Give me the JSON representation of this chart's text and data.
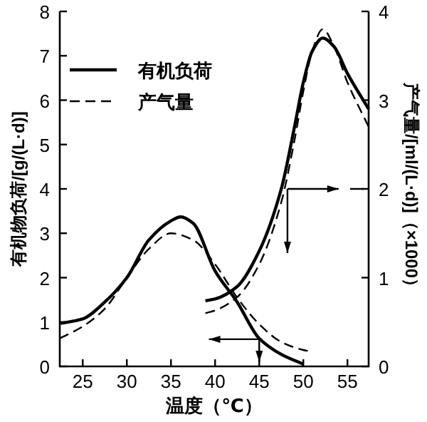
{
  "chart_data": {
    "type": "line",
    "xlabel": "温度（℃）",
    "ylabel": "有机物负荷/[g/(L·d)]",
    "y2label": "产气量/[ml/(L·d)]（×1000）",
    "xlim": [
      22.4,
      57.4
    ],
    "xticks": [
      25,
      30,
      35,
      40,
      45,
      50,
      55
    ],
    "ylim": [
      0,
      8
    ],
    "yticks": [
      0,
      1,
      2,
      3,
      4,
      5,
      6,
      7,
      8
    ],
    "y2lim": [
      0,
      4
    ],
    "y2ticks": [
      0,
      1,
      2,
      3,
      4
    ],
    "legend": "top left",
    "grid": false,
    "series": [
      {
        "name": "有机负荷",
        "color": "#000000",
        "line_style": "solid",
        "x": [
          22.5,
          25,
          27.5,
          30,
          32.5,
          35,
          36.1,
          37.5,
          40,
          42.5,
          45,
          47.5,
          50
        ],
        "values": [
          0.97,
          1.07,
          1.45,
          2.0,
          2.85,
          3.28,
          3.37,
          3.23,
          2.15,
          1.45,
          0.63,
          0.27,
          0.05
        ]
      },
      {
        "name": "产气量",
        "color": "#000000",
        "line_style": "dashed",
        "x": [
          22.4,
          25,
          27.5,
          30,
          32.5,
          35,
          37.5,
          40,
          42.5,
          45,
          47.5,
          50,
          50.5
        ],
        "values": [
          0.63,
          0.9,
          1.3,
          2.0,
          2.65,
          3.0,
          2.85,
          2.3,
          1.55,
          0.95,
          0.55,
          0.37,
          0.35
        ]
      },
      {
        "color": "#000000",
        "line_style": "solid",
        "axis": "y2",
        "x": [
          38.9,
          40,
          42.5,
          45,
          47.5,
          49,
          50,
          51,
          52.2,
          53.5,
          55,
          57.4
        ],
        "values": [
          0.74,
          0.76,
          0.9,
          1.3,
          2.0,
          2.7,
          3.2,
          3.55,
          3.7,
          3.6,
          3.3,
          2.9
        ]
      },
      {
        "color": "#000000",
        "line_style": "dashed",
        "axis": "y2",
        "x": [
          38.9,
          40,
          42.5,
          45,
          47.5,
          49,
          50,
          51,
          52.2,
          53.5,
          55,
          57.4
        ],
        "values": [
          0.6,
          0.63,
          0.78,
          1.15,
          1.85,
          2.55,
          3.1,
          3.55,
          3.8,
          3.6,
          3.2,
          2.7
        ]
      }
    ]
  }
}
